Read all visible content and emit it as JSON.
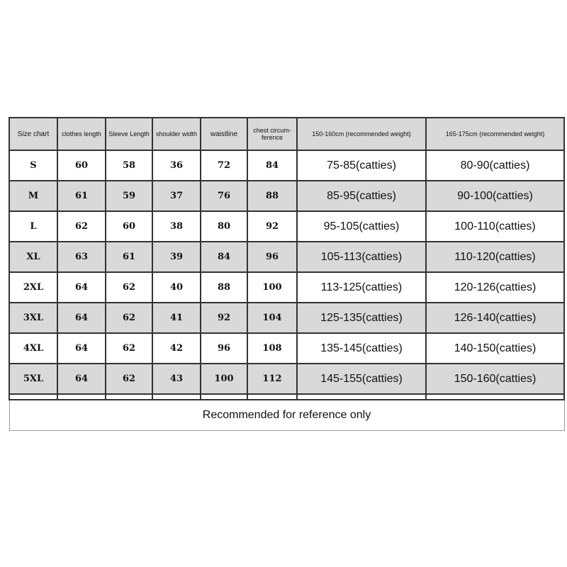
{
  "headers": [
    "Size chart",
    "clothes length",
    "Sleeve Length",
    "shoulder width",
    "waistline",
    "chest circum-ference",
    "150-160cm (recommended weight)",
    "165-175cm (recommended weight)"
  ],
  "rows": [
    [
      "S",
      "60",
      "58",
      "36",
      "72",
      "84",
      "75-85(catties)",
      "80-90(catties)"
    ],
    [
      "M",
      "61",
      "59",
      "37",
      "76",
      "88",
      "85-95(catties)",
      "90-100(catties)"
    ],
    [
      "L",
      "62",
      "60",
      "38",
      "80",
      "92",
      "95-105(catties)",
      "100-110(catties)"
    ],
    [
      "XL",
      "63",
      "61",
      "39",
      "84",
      "96",
      "105-113(catties)",
      "110-120(catties)"
    ],
    [
      "2XL",
      "64",
      "62",
      "40",
      "88",
      "100",
      "113-125(catties)",
      "120-126(catties)"
    ],
    [
      "3XL",
      "64",
      "62",
      "41",
      "92",
      "104",
      "125-135(catties)",
      "126-140(catties)"
    ],
    [
      "4XL",
      "64",
      "62",
      "42",
      "96",
      "108",
      "135-145(catties)",
      "140-150(catties)"
    ],
    [
      "5XL",
      "64",
      "62",
      "43",
      "100",
      "112",
      "145-155(catties)",
      "150-160(catties)"
    ]
  ],
  "footer": "Recommended for reference only"
}
